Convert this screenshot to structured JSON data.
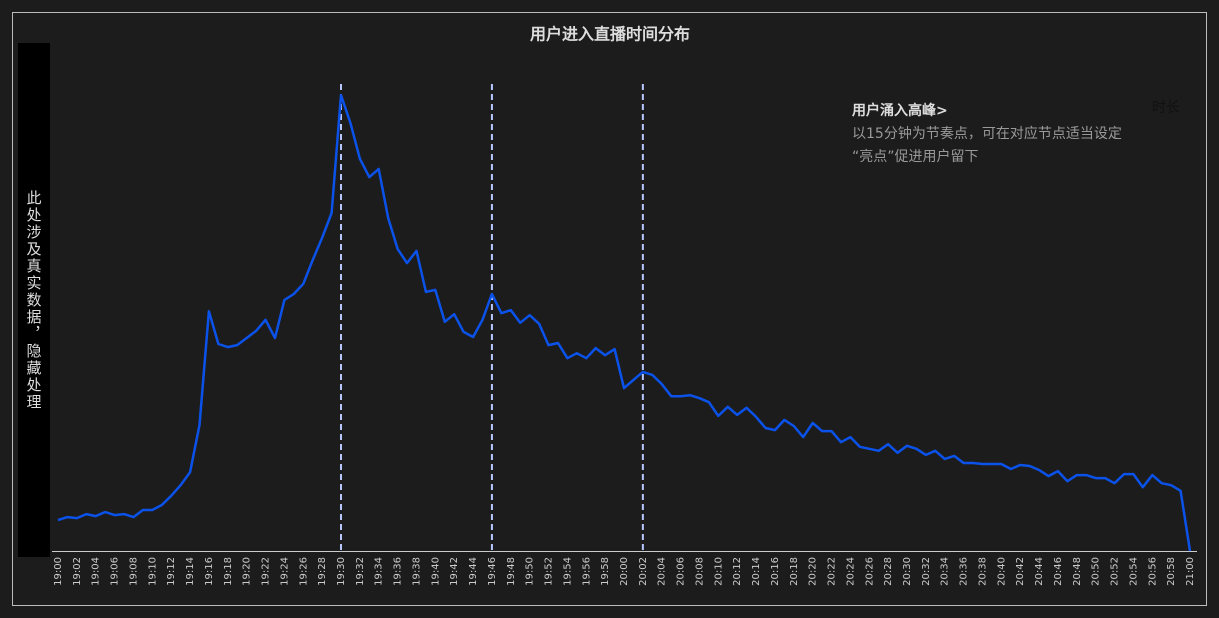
{
  "chart_data": {
    "type": "line",
    "title": "用户进入直播时间分布",
    "side_label": "此处涉及真实数据，隐藏处理",
    "legend_text": "时长",
    "annotation": {
      "title": "用户涌入高峰>",
      "lines": [
        "以15分钟为节奏点，可在对应节点适当设定",
        "“亮点”促进用户留下"
      ]
    },
    "categories": [
      "19:00",
      null,
      "19:02",
      null,
      "19:04",
      null,
      "19:06",
      null,
      "19:08",
      null,
      "19:10",
      null,
      "19:12",
      null,
      "19:14",
      null,
      "19:16",
      null,
      "19:18",
      null,
      "19:20",
      null,
      "19:22",
      null,
      "19:24",
      null,
      "19:26",
      null,
      "19:28",
      null,
      "19:30",
      null,
      "19:32",
      null,
      "19:34",
      null,
      "19:36",
      null,
      "19:38",
      null,
      "19:40",
      null,
      "19:42",
      null,
      "19:44",
      null,
      "19:46",
      null,
      "19:48",
      null,
      "19:50",
      null,
      "19:52",
      null,
      "19:54",
      null,
      "19:56",
      null,
      "19:58",
      null,
      "20:00",
      null,
      "20:02",
      null,
      "20:04",
      null,
      "20:06",
      null,
      "20:08",
      null,
      "20:10",
      null,
      "20:12",
      null,
      "20:14",
      null,
      "20:16",
      null,
      "20:18",
      null,
      "20:20",
      null,
      "20:22",
      null,
      "20:24",
      null,
      "20:26",
      null,
      "20:28",
      null,
      "20:30",
      null,
      "20:32",
      null,
      "20:34",
      null,
      "20:36",
      null,
      "20:38",
      null,
      "20:40",
      null,
      "20:42",
      null,
      "20:44",
      null,
      "20:46",
      null,
      "20:48",
      null,
      "20:50",
      null,
      "20:52",
      null,
      "20:54",
      null,
      "20:56",
      null,
      "20:58",
      null,
      "21:00"
    ],
    "series": [
      {
        "color": "#0b52ea",
        "values": [
          6.1,
          6.7,
          6.5,
          7.3,
          6.9,
          7.7,
          7.1,
          7.3,
          6.7,
          8.1,
          8.1,
          9.1,
          10.9,
          13.0,
          15.6,
          24.9,
          47.4,
          40.9,
          40.3,
          40.7,
          42.1,
          43.5,
          45.7,
          42.1,
          49.6,
          50.8,
          52.8,
          57.5,
          61.9,
          66.8,
          90.1,
          84.6,
          77.5,
          73.9,
          75.5,
          65.8,
          59.7,
          56.9,
          59.3,
          51.2,
          51.6,
          45.3,
          46.8,
          43.3,
          42.3,
          45.7,
          50.8,
          47.0,
          47.6,
          45.1,
          46.6,
          44.9,
          40.7,
          41.1,
          38.1,
          39.1,
          38.1,
          40.1,
          38.7,
          39.9,
          32.2,
          33.8,
          35.4,
          34.8,
          33.0,
          30.6,
          30.6,
          30.8,
          30.2,
          29.4,
          26.7,
          28.5,
          26.9,
          28.3,
          26.5,
          24.3,
          23.9,
          25.9,
          24.7,
          22.5,
          25.3,
          23.7,
          23.7,
          21.5,
          22.5,
          20.6,
          20.2,
          19.8,
          21.1,
          19.4,
          20.8,
          20.2,
          19.0,
          19.8,
          18.2,
          18.8,
          17.4,
          17.4,
          17.2,
          17.2,
          17.2,
          16.2,
          17.0,
          16.8,
          16.0,
          14.8,
          15.8,
          13.8,
          15.0,
          15.0,
          14.4,
          14.4,
          13.4,
          15.2,
          15.2,
          12.6,
          15.0,
          13.4,
          13.0,
          11.9,
          0
        ]
      }
    ],
    "reference_lines": [
      "19:30",
      "19:46",
      "20:02"
    ],
    "reference_color": "#b8c8ff",
    "ylim": [
      0,
      100
    ]
  }
}
